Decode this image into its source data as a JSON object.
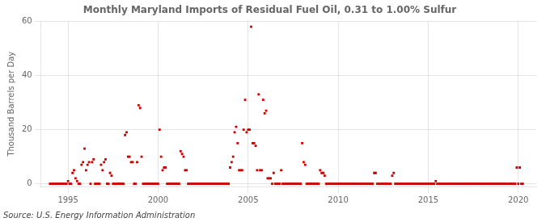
{
  "chart_data": {
    "type": "scatter",
    "title": "Monthly Maryland Imports of Residual Fuel Oil, 0.31 to 1.00% Sulfur",
    "ylabel": "Thousand Barrels per Day",
    "annotations": [
      "Source: U.S. Energy Information Administration"
    ],
    "x": [
      1994.0,
      1994.083,
      1994.167,
      1994.25,
      1994.333,
      1994.417,
      1994.5,
      1994.583,
      1994.667,
      1994.75,
      1994.833,
      1994.917,
      1995.0,
      1995.083,
      1995.167,
      1995.25,
      1995.333,
      1995.417,
      1995.5,
      1995.583,
      1995.667,
      1995.75,
      1995.833,
      1995.917,
      1996.0,
      1996.083,
      1996.167,
      1996.25,
      1996.333,
      1996.417,
      1996.5,
      1996.583,
      1996.667,
      1996.75,
      1996.833,
      1996.917,
      1997.0,
      1997.083,
      1997.167,
      1997.25,
      1997.333,
      1997.417,
      1997.5,
      1997.583,
      1997.667,
      1997.75,
      1997.833,
      1997.917,
      1998.0,
      1998.083,
      1998.167,
      1998.25,
      1998.333,
      1998.417,
      1998.5,
      1998.583,
      1998.667,
      1998.75,
      1998.833,
      1998.917,
      1999.0,
      1999.083,
      1999.167,
      1999.25,
      1999.333,
      1999.417,
      1999.5,
      1999.583,
      1999.667,
      1999.75,
      1999.833,
      1999.917,
      2000.0,
      2000.083,
      2000.167,
      2000.25,
      2000.333,
      2000.417,
      2000.5,
      2000.583,
      2000.667,
      2000.75,
      2000.833,
      2000.917,
      2001.0,
      2001.083,
      2001.167,
      2001.25,
      2001.333,
      2001.417,
      2001.5,
      2001.583,
      2001.667,
      2001.75,
      2001.833,
      2001.917,
      2002.0,
      2002.083,
      2002.167,
      2002.25,
      2002.333,
      2002.417,
      2002.5,
      2002.583,
      2002.667,
      2002.75,
      2002.833,
      2002.917,
      2003.0,
      2003.083,
      2003.167,
      2003.25,
      2003.333,
      2003.417,
      2003.5,
      2003.583,
      2003.667,
      2003.75,
      2003.833,
      2003.917,
      2004.0,
      2004.083,
      2004.167,
      2004.25,
      2004.333,
      2004.417,
      2004.5,
      2004.583,
      2004.667,
      2004.75,
      2004.833,
      2004.917,
      2005.0,
      2005.083,
      2005.167,
      2005.25,
      2005.333,
      2005.417,
      2005.5,
      2005.583,
      2005.667,
      2005.75,
      2005.833,
      2005.917,
      2006.0,
      2006.083,
      2006.167,
      2006.25,
      2006.333,
      2006.417,
      2006.5,
      2006.583,
      2006.667,
      2006.75,
      2006.833,
      2006.917,
      2007.0,
      2007.083,
      2007.167,
      2007.25,
      2007.333,
      2007.417,
      2007.5,
      2007.583,
      2007.667,
      2007.75,
      2007.833,
      2007.917,
      2008.0,
      2008.083,
      2008.167,
      2008.25,
      2008.333,
      2008.417,
      2008.5,
      2008.583,
      2008.667,
      2008.75,
      2008.833,
      2008.917,
      2009.0,
      2009.083,
      2009.167,
      2009.25,
      2009.333,
      2009.417,
      2009.5,
      2009.583,
      2009.667,
      2009.75,
      2009.833,
      2009.917,
      2010.0,
      2010.083,
      2010.167,
      2010.25,
      2010.333,
      2010.417,
      2010.5,
      2010.583,
      2010.667,
      2010.75,
      2010.833,
      2010.917,
      2011.0,
      2011.083,
      2011.167,
      2011.25,
      2011.333,
      2011.417,
      2011.5,
      2011.583,
      2011.667,
      2011.75,
      2011.833,
      2011.917,
      2012.0,
      2012.083,
      2012.167,
      2012.25,
      2012.333,
      2012.417,
      2012.5,
      2012.583,
      2012.667,
      2012.75,
      2012.833,
      2012.917,
      2013.0,
      2013.083,
      2013.167,
      2013.25,
      2013.333,
      2013.417,
      2013.5,
      2013.583,
      2013.667,
      2013.75,
      2013.833,
      2013.917,
      2014.0,
      2014.083,
      2014.167,
      2014.25,
      2014.333,
      2014.417,
      2014.5,
      2014.583,
      2014.667,
      2014.75,
      2014.833,
      2014.917,
      2015.0,
      2015.083,
      2015.167,
      2015.25,
      2015.333,
      2015.417,
      2015.5,
      2015.583,
      2015.667,
      2015.75,
      2015.833,
      2015.917,
      2016.0,
      2016.083,
      2016.167,
      2016.25,
      2016.333,
      2016.417,
      2016.5,
      2016.583,
      2016.667,
      2016.75,
      2016.833,
      2016.917,
      2017.0,
      2017.083,
      2017.167,
      2017.25,
      2017.333,
      2017.417,
      2017.5,
      2017.583,
      2017.667,
      2017.75,
      2017.833,
      2017.917,
      2018.0,
      2018.083,
      2018.167,
      2018.25,
      2018.333,
      2018.417,
      2018.5,
      2018.583,
      2018.667,
      2018.75,
      2018.833,
      2018.917,
      2019.0,
      2019.083,
      2019.167,
      2019.25,
      2019.333,
      2019.417,
      2019.5,
      2019.583,
      2019.667,
      2019.75,
      2019.833,
      2019.917,
      2020.0,
      2020.083,
      2020.167,
      2020.25
    ],
    "values": [
      0,
      0,
      0,
      0,
      0,
      0,
      0,
      0,
      0,
      0,
      0,
      0,
      1,
      0,
      0,
      4,
      5,
      2,
      1,
      0,
      0,
      7,
      8,
      13,
      5,
      7,
      8,
      0,
      8,
      9,
      0,
      0,
      0,
      0,
      7,
      5,
      8,
      9,
      0,
      0,
      4,
      3,
      0,
      0,
      0,
      0,
      0,
      0,
      0,
      0,
      18,
      19,
      10,
      10,
      8,
      8,
      0,
      0,
      8,
      29,
      28,
      10,
      0,
      0,
      0,
      0,
      0,
      0,
      0,
      0,
      0,
      0,
      0,
      20,
      10,
      5,
      6,
      6,
      0,
      0,
      0,
      0,
      0,
      0,
      0,
      0,
      0,
      12,
      11,
      10,
      5,
      5,
      0,
      0,
      0,
      0,
      0,
      0,
      0,
      0,
      0,
      0,
      0,
      0,
      0,
      0,
      0,
      0,
      0,
      0,
      0,
      0,
      0,
      0,
      0,
      0,
      0,
      0,
      0,
      0,
      6,
      8,
      10,
      19,
      21,
      15,
      5,
      5,
      5,
      20,
      31,
      19,
      20,
      20,
      58,
      15,
      15,
      14,
      5,
      33,
      5,
      5,
      31,
      26,
      27,
      2,
      2,
      2,
      0,
      4,
      0,
      0,
      0,
      0,
      5,
      0,
      0,
      0,
      0,
      0,
      0,
      0,
      0,
      0,
      0,
      0,
      0,
      0,
      15,
      8,
      7,
      0,
      0,
      0,
      0,
      0,
      0,
      0,
      0,
      0,
      5,
      4,
      4,
      3,
      0,
      0,
      0,
      0,
      0,
      0,
      0,
      0,
      0,
      0,
      0,
      0,
      0,
      0,
      0,
      0,
      0,
      0,
      0,
      0,
      0,
      0,
      0,
      0,
      0,
      0,
      0,
      0,
      0,
      0,
      0,
      0,
      4,
      4,
      0,
      0,
      0,
      0,
      0,
      0,
      0,
      0,
      0,
      0,
      3,
      4,
      0,
      0,
      0,
      0,
      0,
      0,
      0,
      0,
      0,
      0,
      0,
      0,
      0,
      0,
      0,
      0,
      0,
      0,
      0,
      0,
      0,
      0,
      0,
      0,
      0,
      0,
      0,
      1,
      0,
      0,
      0,
      0,
      0,
      0,
      0,
      0,
      0,
      0,
      0,
      0,
      0,
      0,
      0,
      0,
      0,
      0,
      0,
      0,
      0,
      0,
      0,
      0,
      0,
      0,
      0,
      0,
      0,
      0,
      0,
      0,
      0,
      0,
      0,
      0,
      0,
      0,
      0,
      0,
      0,
      0,
      0,
      0,
      0,
      0,
      0,
      0,
      0,
      0,
      0,
      0,
      0,
      6,
      0,
      6,
      0,
      0
    ],
    "color": "#cc0000",
    "marker": "square",
    "xlim": [
      1993.5,
      2021.0
    ],
    "xticks": [
      1995,
      2000,
      2005,
      2010,
      2015,
      2020
    ],
    "ylim": [
      -1,
      60
    ],
    "yticks": [
      0,
      20,
      40,
      60
    ],
    "grid": true
  }
}
